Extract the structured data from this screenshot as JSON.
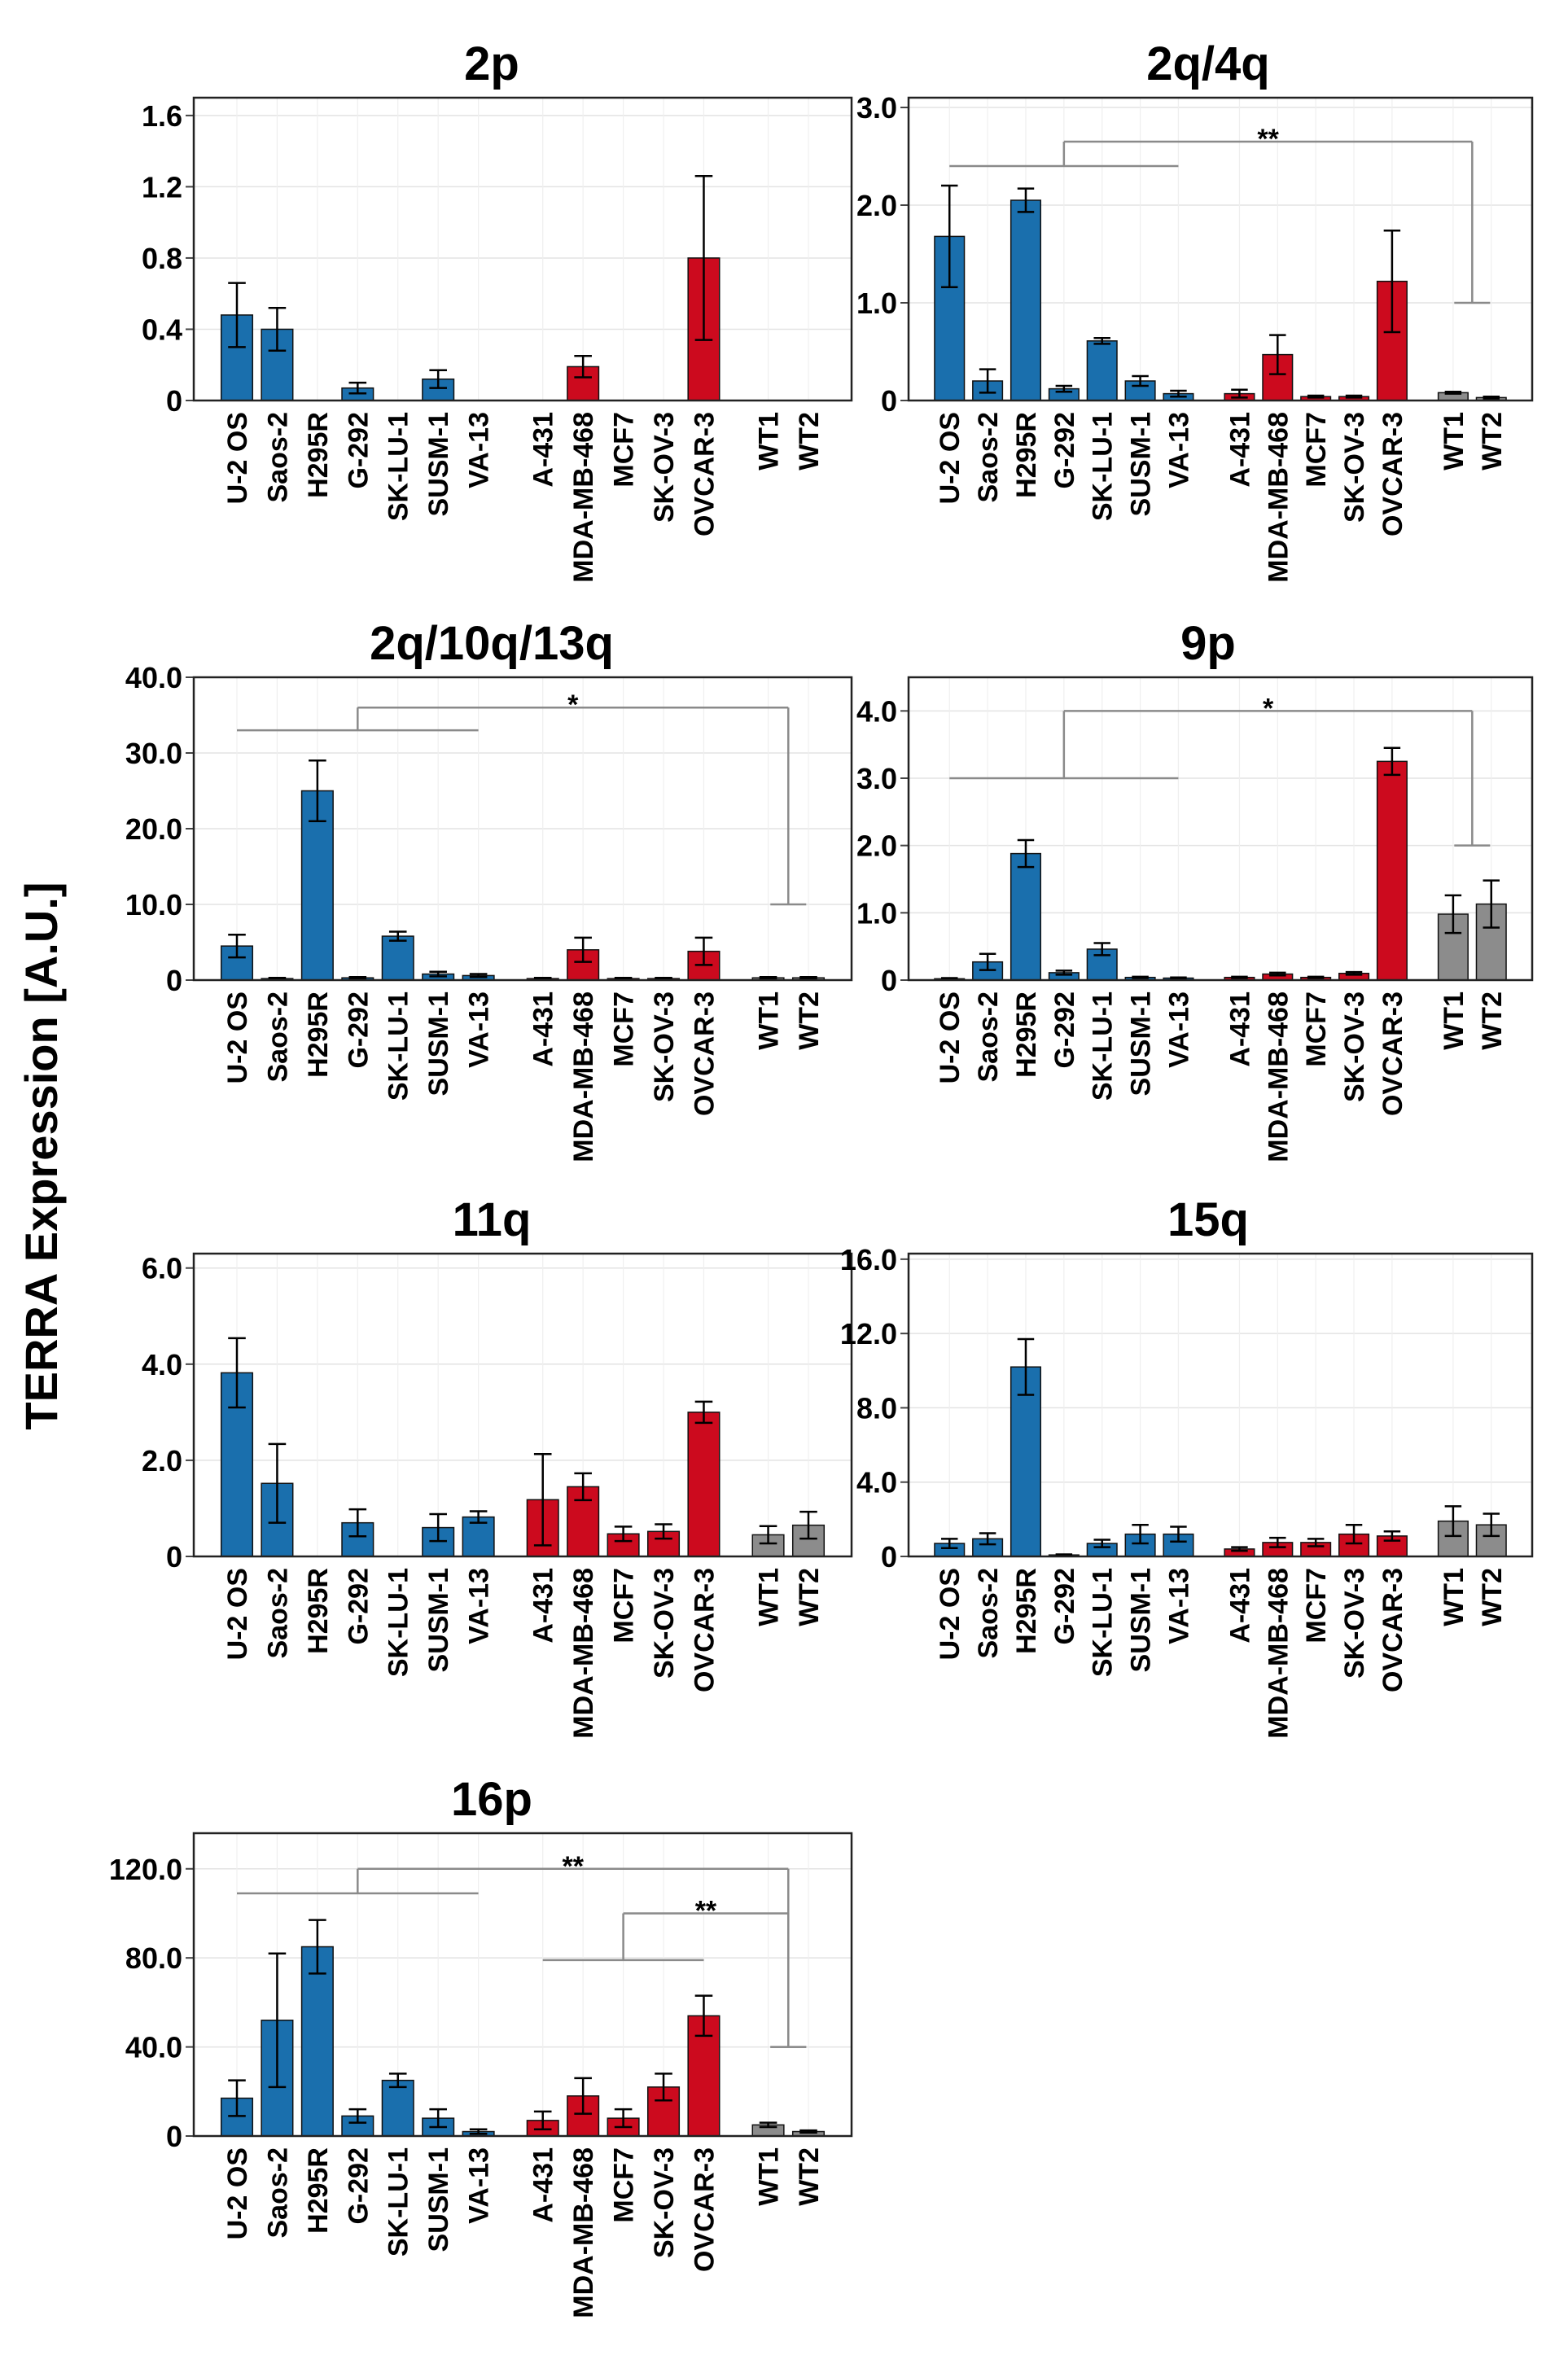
{
  "figure": {
    "ylabel": "TERRA Expression [A.U.]",
    "colors": {
      "osteosarcoma_group": "#1a6fad",
      "carcinoma_group": "#cc0a1e",
      "control_group": "#8c8c8c"
    }
  },
  "chart_data": [
    {
      "type": "bar",
      "title": "2p",
      "ylim": [
        0,
        1.7
      ],
      "yticks": [
        0,
        0.4,
        0.8,
        1.2,
        1.6
      ],
      "yticklabels": [
        "0",
        "0.4",
        "0.8",
        "1.2",
        "1.6"
      ],
      "categories": [
        "U-2 OS",
        "Saos-2",
        "H295R",
        "G-292",
        "SK-LU-1",
        "SUSM-1",
        "VA-13",
        "A-431",
        "MDA-MB-468",
        "MCF7",
        "SK-OV-3",
        "OVCAR-3",
        "WT1",
        "WT2"
      ],
      "values": [
        0.48,
        0.4,
        0,
        0.07,
        0,
        0.12,
        0,
        0,
        0.19,
        0,
        0,
        0.8,
        0,
        0
      ],
      "errors": [
        0.18,
        0.12,
        0,
        0.03,
        0,
        0.05,
        0,
        0,
        0.06,
        0,
        0,
        0.46,
        0,
        0
      ],
      "groups": [
        "b",
        "b",
        "b",
        "b",
        "b",
        "b",
        "b",
        "r",
        "r",
        "r",
        "r",
        "r",
        "g",
        "g"
      ],
      "brackets": []
    },
    {
      "type": "bar",
      "title": "2q/4q",
      "ylim": [
        0,
        3.1
      ],
      "yticks": [
        0,
        1,
        2,
        3
      ],
      "yticklabels": [
        "0",
        "1.0",
        "2.0",
        "3.0"
      ],
      "categories": [
        "U-2 OS",
        "Saos-2",
        "H295R",
        "G-292",
        "SK-LU-1",
        "SUSM-1",
        "VA-13",
        "A-431",
        "MDA-MB-468",
        "MCF7",
        "SK-OV-3",
        "OVCAR-3",
        "WT1",
        "WT2"
      ],
      "values": [
        1.68,
        0.2,
        2.05,
        0.12,
        0.61,
        0.2,
        0.07,
        0.07,
        0.47,
        0.04,
        0.04,
        1.22,
        0.08,
        0.03
      ],
      "errors": [
        0.52,
        0.12,
        0.12,
        0.03,
        0.03,
        0.05,
        0.03,
        0.04,
        0.2,
        0.01,
        0.01,
        0.52,
        0.01,
        0.01
      ],
      "groups": [
        "b",
        "b",
        "b",
        "b",
        "b",
        "b",
        "b",
        "r",
        "r",
        "r",
        "r",
        "r",
        "g",
        "g"
      ],
      "brackets": [
        {
          "label": "**",
          "from": 0,
          "to": 6,
          "low": 2.4,
          "target": 12.5,
          "target_low": 1.0,
          "high": 2.65
        }
      ]
    },
    {
      "type": "bar",
      "title": "2q/10q/13q",
      "ylim": [
        0,
        40
      ],
      "yticks": [
        0,
        10,
        20,
        30,
        40
      ],
      "yticklabels": [
        "0",
        "10.0",
        "20.0",
        "30.0",
        "40.0"
      ],
      "categories": [
        "U-2 OS",
        "Saos-2",
        "H295R",
        "G-292",
        "SK-LU-1",
        "SUSM-1",
        "VA-13",
        "A-431",
        "MDA-MB-468",
        "MCF7",
        "SK-OV-3",
        "OVCAR-3",
        "WT1",
        "WT2"
      ],
      "values": [
        4.5,
        0.2,
        25.0,
        0.3,
        5.8,
        0.8,
        0.6,
        0.2,
        4.0,
        0.2,
        0.2,
        3.8,
        0.3,
        0.3
      ],
      "errors": [
        1.5,
        0.1,
        4.0,
        0.1,
        0.6,
        0.3,
        0.2,
        0.1,
        1.6,
        0.1,
        0.1,
        1.8,
        0.1,
        0.1
      ],
      "groups": [
        "b",
        "b",
        "b",
        "b",
        "b",
        "b",
        "b",
        "r",
        "r",
        "r",
        "r",
        "r",
        "g",
        "g"
      ],
      "brackets": [
        {
          "label": "*",
          "from": 0,
          "to": 6,
          "low": 33.0,
          "target": 12.5,
          "target_low": 10.0,
          "high": 36.0
        }
      ]
    },
    {
      "type": "bar",
      "title": "9p",
      "ylim": [
        0,
        4.5
      ],
      "yticks": [
        0,
        1,
        2,
        3,
        4
      ],
      "yticklabels": [
        "0",
        "1.0",
        "2.0",
        "3.0",
        "4.0"
      ],
      "categories": [
        "U-2 OS",
        "Saos-2",
        "H295R",
        "G-292",
        "SK-LU-1",
        "SUSM-1",
        "VA-13",
        "A-431",
        "MDA-MB-468",
        "MCF7",
        "SK-OV-3",
        "OVCAR-3",
        "WT1",
        "WT2"
      ],
      "values": [
        0.02,
        0.27,
        1.88,
        0.11,
        0.46,
        0.04,
        0.03,
        0.04,
        0.09,
        0.04,
        0.1,
        3.25,
        0.98,
        1.13
      ],
      "errors": [
        0.01,
        0.12,
        0.2,
        0.03,
        0.09,
        0.01,
        0.01,
        0.01,
        0.02,
        0.01,
        0.02,
        0.2,
        0.28,
        0.35
      ],
      "groups": [
        "b",
        "b",
        "b",
        "b",
        "b",
        "b",
        "b",
        "r",
        "r",
        "r",
        "r",
        "r",
        "g",
        "g"
      ],
      "brackets": [
        {
          "label": "*",
          "from": 0,
          "to": 6,
          "low": 3.0,
          "target": 12.5,
          "target_low": 2.0,
          "high": 4.0
        }
      ]
    },
    {
      "type": "bar",
      "title": "11q",
      "ylim": [
        0,
        6.3
      ],
      "yticks": [
        0,
        2,
        4,
        6
      ],
      "yticklabels": [
        "0",
        "2.0",
        "4.0",
        "6.0"
      ],
      "categories": [
        "U-2 OS",
        "Saos-2",
        "H295R",
        "G-292",
        "SK-LU-1",
        "SUSM-1",
        "VA-13",
        "A-431",
        "MDA-MB-468",
        "MCF7",
        "SK-OV-3",
        "OVCAR-3",
        "WT1",
        "WT2"
      ],
      "values": [
        3.82,
        1.52,
        0,
        0.7,
        0,
        0.6,
        0.82,
        1.18,
        1.45,
        0.47,
        0.52,
        3.0,
        0.45,
        0.65
      ],
      "errors": [
        0.72,
        0.82,
        0,
        0.28,
        0,
        0.28,
        0.12,
        0.95,
        0.28,
        0.15,
        0.15,
        0.22,
        0.18,
        0.28
      ],
      "groups": [
        "b",
        "b",
        "b",
        "b",
        "b",
        "b",
        "b",
        "r",
        "r",
        "r",
        "r",
        "r",
        "g",
        "g"
      ],
      "brackets": []
    },
    {
      "type": "bar",
      "title": "15q",
      "ylim": [
        0,
        16.3
      ],
      "yticks": [
        0,
        4,
        8,
        12,
        16
      ],
      "yticklabels": [
        "0",
        "4.0",
        "8.0",
        "12.0",
        "16.0"
      ],
      "categories": [
        "U-2 OS",
        "Saos-2",
        "H295R",
        "G-292",
        "SK-LU-1",
        "SUSM-1",
        "VA-13",
        "A-431",
        "MDA-MB-468",
        "MCF7",
        "SK-OV-3",
        "OVCAR-3",
        "WT1",
        "WT2"
      ],
      "values": [
        0.7,
        0.95,
        10.2,
        0.08,
        0.7,
        1.2,
        1.2,
        0.4,
        0.75,
        0.75,
        1.2,
        1.1,
        1.9,
        1.7
      ],
      "errors": [
        0.25,
        0.3,
        1.5,
        0.03,
        0.2,
        0.5,
        0.4,
        0.1,
        0.25,
        0.2,
        0.5,
        0.25,
        0.8,
        0.6
      ],
      "groups": [
        "b",
        "b",
        "b",
        "b",
        "b",
        "b",
        "b",
        "r",
        "r",
        "r",
        "r",
        "r",
        "g",
        "g"
      ],
      "brackets": []
    },
    {
      "type": "bar",
      "title": "16p",
      "ylim": [
        0,
        136
      ],
      "yticks": [
        0,
        40,
        80,
        120
      ],
      "yticklabels": [
        "0",
        "40.0",
        "80.0",
        "120.0"
      ],
      "categories": [
        "U-2 OS",
        "Saos-2",
        "H295R",
        "G-292",
        "SK-LU-1",
        "SUSM-1",
        "VA-13",
        "A-431",
        "MDA-MB-468",
        "MCF7",
        "SK-OV-3",
        "OVCAR-3",
        "WT1",
        "WT2"
      ],
      "values": [
        17,
        52,
        85,
        9,
        25,
        8,
        2,
        7,
        18,
        8,
        22,
        54,
        5,
        2
      ],
      "errors": [
        8,
        30,
        12,
        3,
        3,
        4,
        1,
        4,
        8,
        4,
        6,
        9,
        1,
        0.5
      ],
      "groups": [
        "b",
        "b",
        "b",
        "b",
        "b",
        "b",
        "b",
        "r",
        "r",
        "r",
        "r",
        "r",
        "g",
        "g"
      ],
      "brackets": [
        {
          "label": "**",
          "from": 0,
          "to": 6,
          "low": 109,
          "target": 12.5,
          "target_low": 40,
          "high": 120
        },
        {
          "label": "**",
          "from": 7,
          "to": 11,
          "low": 79,
          "target": 12.5,
          "target_low": 40,
          "high": 100
        }
      ]
    }
  ]
}
